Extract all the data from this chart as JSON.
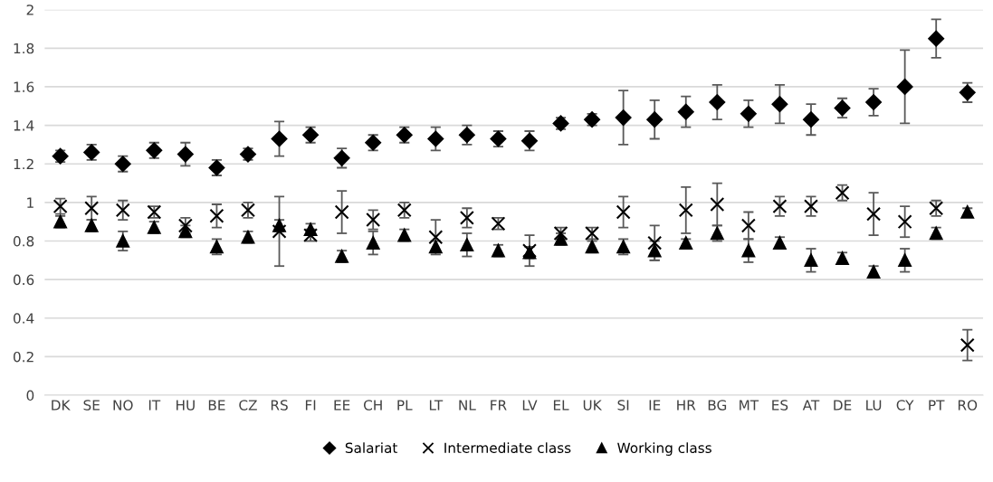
{
  "chart_data": {
    "type": "scatter",
    "categories": [
      "DK",
      "SE",
      "NO",
      "IT",
      "HU",
      "BE",
      "CZ",
      "RS",
      "FI",
      "EE",
      "CH",
      "PL",
      "LT",
      "NL",
      "FR",
      "LV",
      "EL",
      "UK",
      "SI",
      "IE",
      "HR",
      "BG",
      "MT",
      "ES",
      "AT",
      "DE",
      "LU",
      "CY",
      "PT",
      "RO"
    ],
    "series": [
      {
        "name": "Salariat",
        "color": "#000000",
        "marker": "diamond",
        "values": [
          1.24,
          1.26,
          1.2,
          1.27,
          1.25,
          1.18,
          1.25,
          1.33,
          1.35,
          1.23,
          1.31,
          1.35,
          1.33,
          1.35,
          1.33,
          1.32,
          1.41,
          1.43,
          1.44,
          1.43,
          1.47,
          1.52,
          1.46,
          1.51,
          1.43,
          1.49,
          1.52,
          1.6,
          1.85,
          1.57
        ],
        "errors": [
          0.03,
          0.04,
          0.04,
          0.04,
          0.06,
          0.04,
          0.03,
          0.09,
          0.04,
          0.05,
          0.04,
          0.04,
          0.06,
          0.05,
          0.04,
          0.05,
          0.03,
          0.03,
          0.14,
          0.1,
          0.08,
          0.09,
          0.07,
          0.1,
          0.08,
          0.05,
          0.07,
          0.19,
          0.1,
          0.05
        ]
      },
      {
        "name": "Intermediate class",
        "color": "#000000",
        "marker": "cross",
        "values": [
          0.98,
          0.97,
          0.96,
          0.95,
          0.88,
          0.93,
          0.96,
          0.85,
          0.83,
          0.95,
          0.91,
          0.96,
          0.82,
          0.92,
          0.89,
          0.75,
          0.84,
          0.84,
          0.95,
          0.79,
          0.96,
          0.99,
          0.88,
          0.98,
          0.98,
          1.05,
          0.94,
          0.9,
          0.97,
          0.26
        ],
        "errors": [
          0.04,
          0.06,
          0.05,
          0.03,
          0.04,
          0.06,
          0.04,
          0.18,
          0.03,
          0.11,
          0.05,
          0.04,
          0.09,
          0.05,
          0.03,
          0.08,
          0.03,
          0.03,
          0.08,
          0.09,
          0.12,
          0.11,
          0.07,
          0.05,
          0.05,
          0.04,
          0.11,
          0.08,
          0.04,
          0.08
        ]
      },
      {
        "name": "Working class",
        "color": "#000000",
        "marker": "triangle",
        "values": [
          0.9,
          0.88,
          0.8,
          0.87,
          0.85,
          0.77,
          0.82,
          0.88,
          0.86,
          0.72,
          0.79,
          0.83,
          0.77,
          0.78,
          0.75,
          0.74,
          0.81,
          0.77,
          0.77,
          0.75,
          0.79,
          0.84,
          0.75,
          0.79,
          0.7,
          0.71,
          0.64,
          0.7,
          0.84,
          0.95
        ],
        "errors": [
          0.03,
          0.03,
          0.05,
          0.03,
          0.03,
          0.04,
          0.03,
          0.03,
          0.03,
          0.03,
          0.06,
          0.03,
          0.03,
          0.06,
          0.03,
          0.03,
          0.03,
          0.03,
          0.04,
          0.05,
          0.02,
          0.04,
          0.06,
          0.03,
          0.06,
          0.03,
          0.03,
          0.06,
          0.03,
          0.02
        ]
      }
    ],
    "ylim": [
      0,
      2
    ],
    "yticks": [
      0,
      0.2,
      0.4,
      0.6,
      0.8,
      1,
      1.2,
      1.4,
      1.6,
      1.8,
      2
    ],
    "grid": "y",
    "legend": "bottom"
  }
}
